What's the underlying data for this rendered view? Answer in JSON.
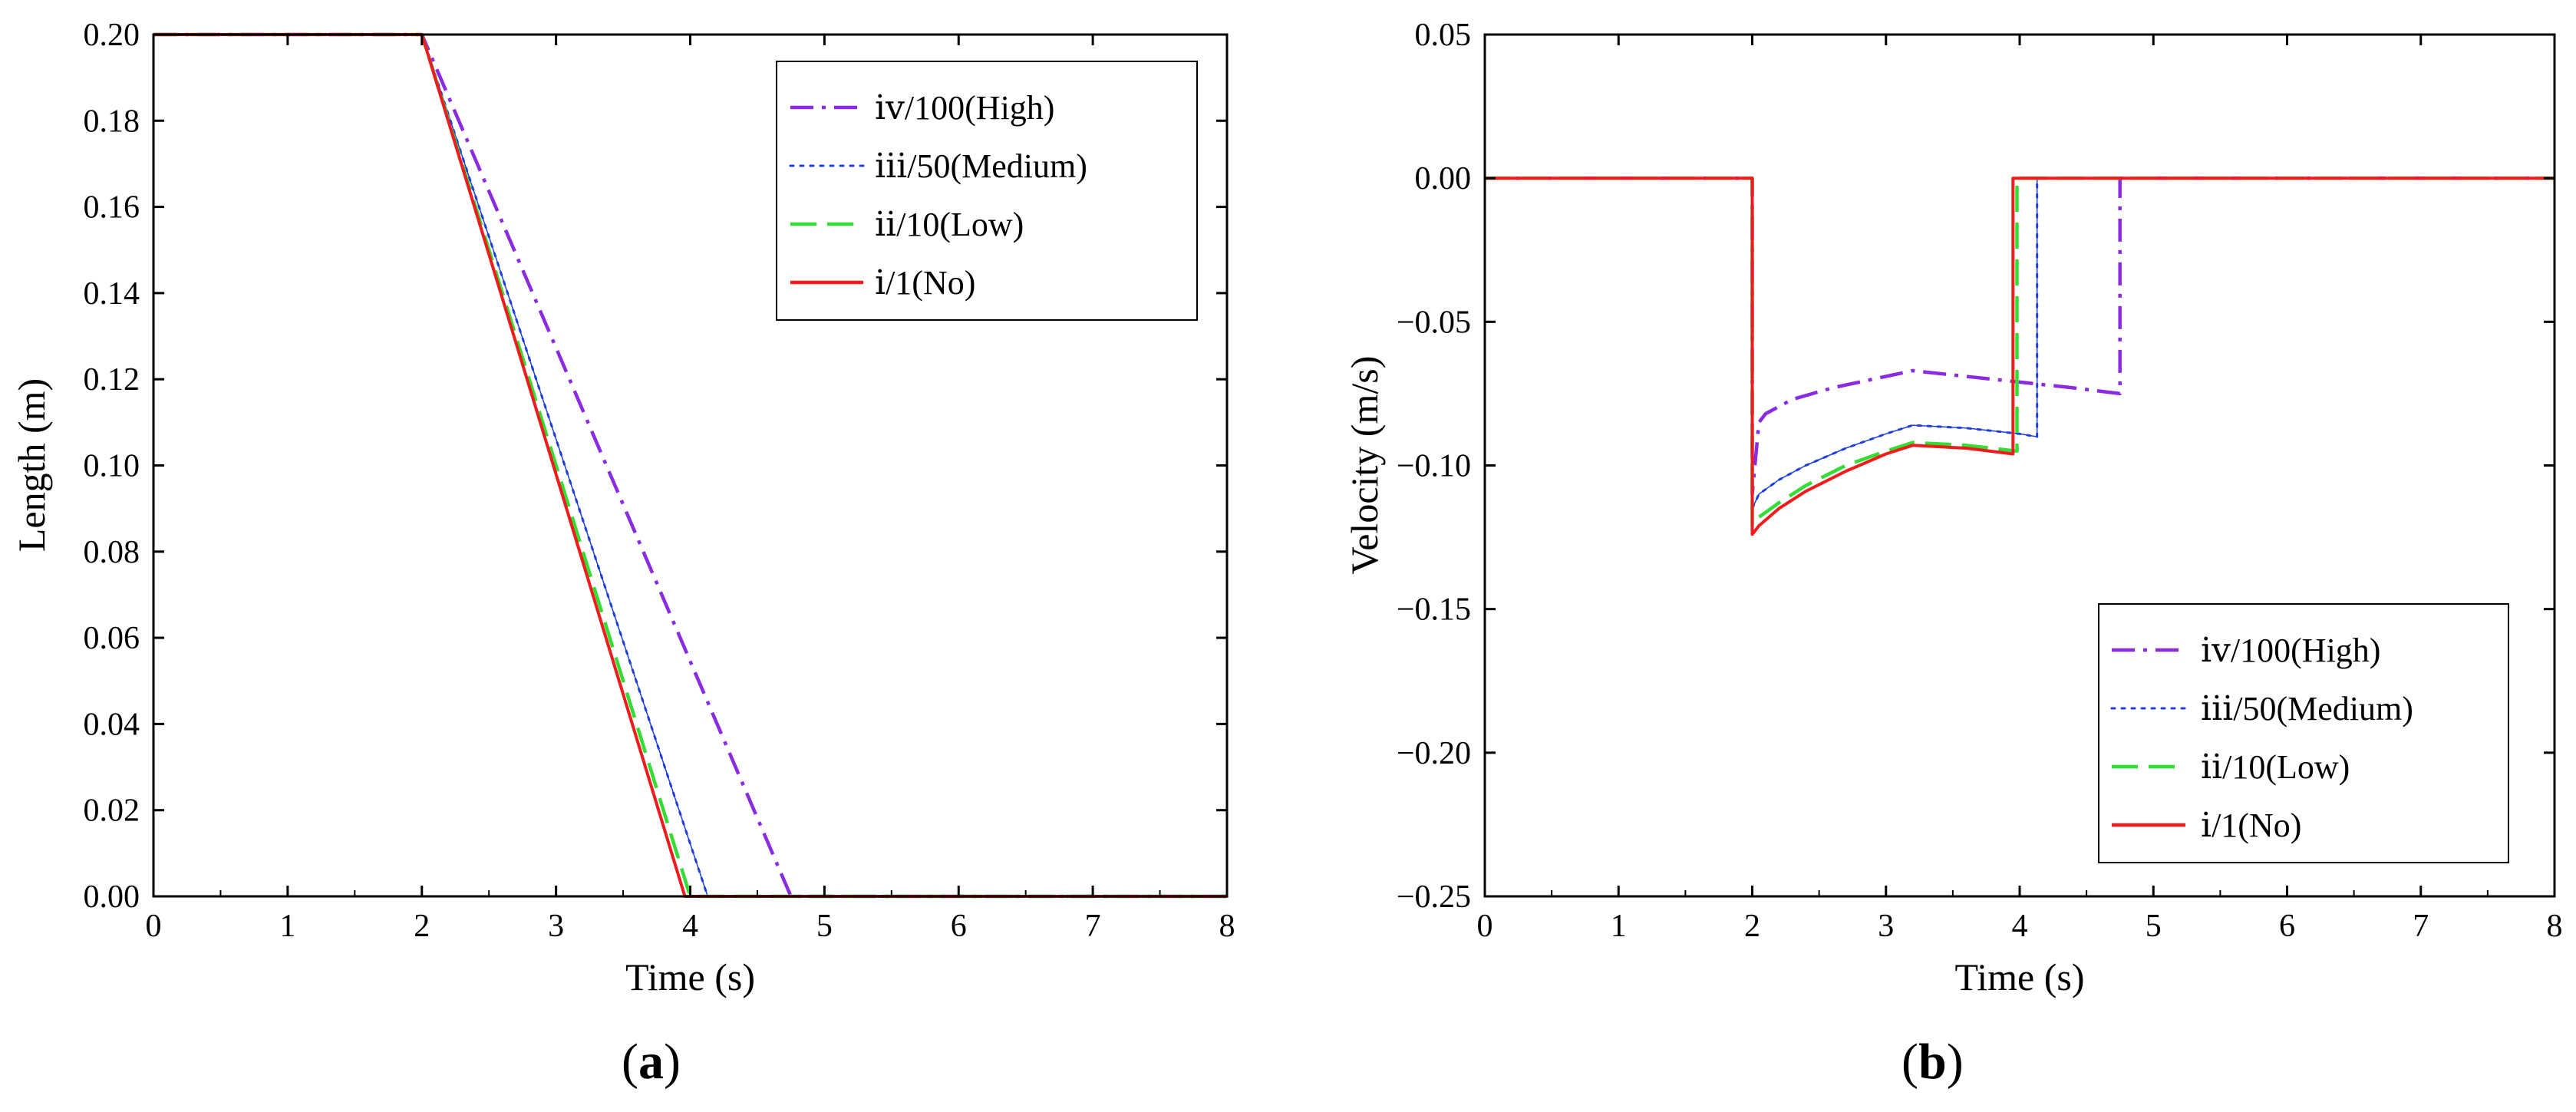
{
  "chart_data": [
    {
      "type": "line",
      "panel_label": "(a)",
      "panel_letter": "a",
      "xlabel": "Time (s)",
      "ylabel": "Length (m)",
      "xlim": [
        0,
        8
      ],
      "ylim": [
        0,
        0.2
      ],
      "xticks": [
        0,
        1,
        2,
        3,
        4,
        5,
        6,
        7,
        8
      ],
      "xtick_labels": [
        "0",
        "1",
        "2",
        "3",
        "4",
        "5",
        "6",
        "7",
        "8"
      ],
      "yticks": [
        0,
        0.02,
        0.04,
        0.06,
        0.08,
        0.1,
        0.12,
        0.14,
        0.16,
        0.18,
        0.2
      ],
      "ytick_labels": [
        "0.00",
        "0.02",
        "0.04",
        "0.06",
        "0.08",
        "0.10",
        "0.12",
        "0.14",
        "0.16",
        "0.18",
        "0.20"
      ],
      "legend_position": "top-right",
      "series": [
        {
          "name": "ⅳ/100(High)",
          "color": "#8a2be2",
          "style": "dashdot",
          "x": [
            0,
            2,
            4.75,
            8
          ],
          "y": [
            0.2,
            0.2,
            0,
            0
          ]
        },
        {
          "name": "ⅲ/50(Medium)",
          "color": "#1f3fdc",
          "style": "dotted",
          "x": [
            0,
            2,
            4.13,
            8
          ],
          "y": [
            0.2,
            0.2,
            0,
            0
          ]
        },
        {
          "name": "ⅱ/10(Low)",
          "color": "#33dd33",
          "style": "dashed",
          "x": [
            0,
            2,
            4.0,
            8
          ],
          "y": [
            0.2,
            0.2,
            0,
            0
          ]
        },
        {
          "name": "ⅰ/1(No)",
          "color": "#ee1c1c",
          "style": "solid",
          "x": [
            0,
            2,
            3.96,
            8
          ],
          "y": [
            0.2,
            0.2,
            0,
            0
          ]
        }
      ]
    },
    {
      "type": "line",
      "panel_label": "(b)",
      "panel_letter": "b",
      "xlabel": "Time (s)",
      "ylabel": "Velocity (m/s)",
      "xlim": [
        0,
        8
      ],
      "ylim": [
        -0.25,
        0.05
      ],
      "xticks": [
        0,
        1,
        2,
        3,
        4,
        5,
        6,
        7,
        8
      ],
      "xtick_labels": [
        "0",
        "1",
        "2",
        "3",
        "4",
        "5",
        "6",
        "7",
        "8"
      ],
      "yticks": [
        -0.25,
        -0.2,
        -0.15,
        -0.1,
        -0.05,
        0,
        0.05
      ],
      "ytick_labels": [
        "−0.25",
        "−0.20",
        "−0.15",
        "−0.10",
        "−0.05",
        "0.00",
        "0.05"
      ],
      "legend_position": "bottom-right",
      "series": [
        {
          "name": "ⅳ/100(High)",
          "color": "#8a2be2",
          "style": "dashdot",
          "x": [
            0,
            2.0,
            2.0,
            2.05,
            2.1,
            2.3,
            2.6,
            2.9,
            3.2,
            3.6,
            4.0,
            4.4,
            4.75,
            4.75,
            8
          ],
          "y": [
            0,
            0,
            -0.11,
            -0.085,
            -0.082,
            -0.077,
            -0.073,
            -0.07,
            -0.067,
            -0.069,
            -0.071,
            -0.073,
            -0.075,
            0,
            0
          ]
        },
        {
          "name": "ⅲ/50(Medium)",
          "color": "#1f3fdc",
          "style": "dotted",
          "x": [
            0,
            2.0,
            2.0,
            2.05,
            2.2,
            2.4,
            2.7,
            3.0,
            3.2,
            3.6,
            4.0,
            4.13,
            4.13,
            8
          ],
          "y": [
            0,
            0,
            -0.115,
            -0.11,
            -0.105,
            -0.1,
            -0.094,
            -0.089,
            -0.086,
            -0.087,
            -0.089,
            -0.09,
            0,
            0
          ]
        },
        {
          "name": "ⅱ/10(Low)",
          "color": "#33dd33",
          "style": "dashed",
          "x": [
            0,
            2.0,
            2.0,
            2.05,
            2.2,
            2.4,
            2.7,
            3.0,
            3.2,
            3.6,
            3.98,
            3.98,
            8
          ],
          "y": [
            0,
            0,
            -0.121,
            -0.118,
            -0.113,
            -0.107,
            -0.1,
            -0.095,
            -0.092,
            -0.093,
            -0.095,
            0,
            0
          ]
        },
        {
          "name": "ⅰ/1(No)",
          "color": "#ee1c1c",
          "style": "solid",
          "x": [
            0,
            2.0,
            2.0,
            2.05,
            2.2,
            2.4,
            2.7,
            3.0,
            3.2,
            3.6,
            3.95,
            3.95,
            8
          ],
          "y": [
            0,
            0,
            -0.124,
            -0.121,
            -0.115,
            -0.109,
            -0.102,
            -0.096,
            -0.093,
            -0.094,
            -0.096,
            0,
            0
          ]
        }
      ]
    }
  ]
}
